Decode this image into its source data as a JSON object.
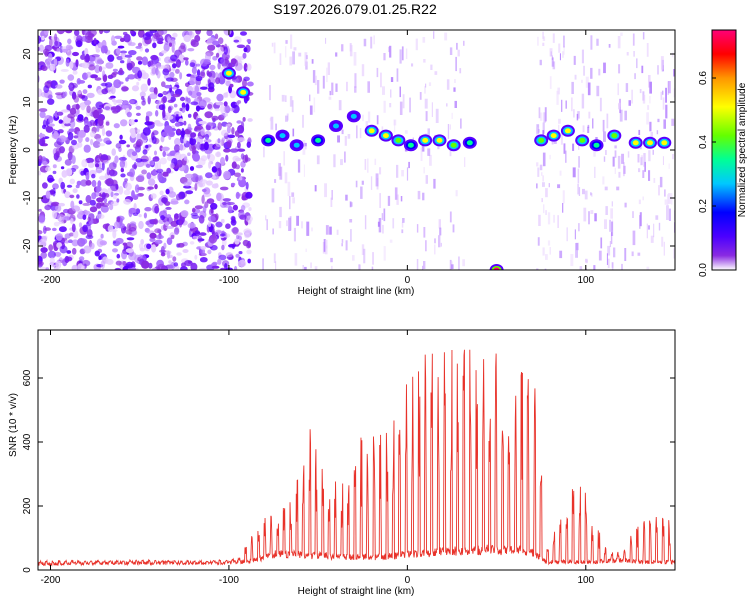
{
  "title": "S197.2026.079.01.25.R22",
  "chart_data": [
    {
      "type": "heatmap",
      "name": "spectrogram",
      "xlabel": "Height of straight line (km)",
      "ylabel": "Frequency (Hz)",
      "xlim": [
        -207,
        150
      ],
      "ylim": [
        -25,
        25
      ],
      "xticks": [
        -200,
        -100,
        0,
        100
      ],
      "xtick_labels": [
        "-200",
        "-100",
        "0",
        "100"
      ],
      "yticks": [
        -20,
        -10,
        0,
        10,
        20
      ],
      "ytick_labels": [
        "-20",
        "-10",
        "0",
        "10",
        "20"
      ],
      "colorbar": {
        "label": "Normalized spectral amplitude",
        "range": [
          0,
          0.75
        ],
        "ticks": [
          0,
          0.2,
          0.4,
          0.6
        ],
        "tick_labels": [
          "0.0",
          "0.2",
          "0.4",
          "0.6"
        ],
        "colors": [
          "#ffffff",
          "#8a2be2",
          "#4b00ff",
          "#0000ff",
          "#00c8ff",
          "#00ff96",
          "#64ff00",
          "#ffff00",
          "#ff9600",
          "#ff0000",
          "#ff0078"
        ]
      },
      "noise_region_km": [
        -207,
        -88
      ],
      "gap_regions_km": [
        [
          -82,
          32
        ],
        [
          72,
          150
        ]
      ],
      "blank_region_km": [
        32,
        72
      ],
      "tone_frequency_hz": 1.5,
      "tone_points": [
        {
          "x": -100,
          "y": 16,
          "a": 0.5
        },
        {
          "x": -92,
          "y": 12,
          "a": 0.55
        },
        {
          "x": -78,
          "y": 2,
          "a": 0.35
        },
        {
          "x": -70,
          "y": 3,
          "a": 0.3
        },
        {
          "x": -62,
          "y": 1,
          "a": 0.3
        },
        {
          "x": -50,
          "y": 2,
          "a": 0.35
        },
        {
          "x": -40,
          "y": 5,
          "a": 0.3
        },
        {
          "x": -30,
          "y": 7,
          "a": 0.3
        },
        {
          "x": -20,
          "y": 4,
          "a": 0.55
        },
        {
          "x": -12,
          "y": 3,
          "a": 0.5
        },
        {
          "x": -5,
          "y": 2,
          "a": 0.45
        },
        {
          "x": 2,
          "y": 1,
          "a": 0.4
        },
        {
          "x": 10,
          "y": 2,
          "a": 0.5
        },
        {
          "x": 18,
          "y": 2,
          "a": 0.5
        },
        {
          "x": 26,
          "y": 1,
          "a": 0.45
        },
        {
          "x": 35,
          "y": 1.5,
          "a": 0.4
        },
        {
          "x": 50,
          "y": -25,
          "a": 0.75
        },
        {
          "x": 75,
          "y": 2,
          "a": 0.45
        },
        {
          "x": 82,
          "y": 3,
          "a": 0.5
        },
        {
          "x": 90,
          "y": 4,
          "a": 0.5
        },
        {
          "x": 98,
          "y": 2,
          "a": 0.45
        },
        {
          "x": 106,
          "y": 1,
          "a": 0.4
        },
        {
          "x": 116,
          "y": 3,
          "a": 0.45
        },
        {
          "x": 128,
          "y": 1.5,
          "a": 0.5
        },
        {
          "x": 136,
          "y": 1.5,
          "a": 0.5
        },
        {
          "x": 144,
          "y": 1.5,
          "a": 0.5
        }
      ]
    },
    {
      "type": "line",
      "name": "snr",
      "xlabel": "Height of straight line (km)",
      "ylabel": "SNR (10 * v/v)",
      "xlim": [
        -207,
        150
      ],
      "ylim": [
        0,
        750
      ],
      "xticks": [
        -200,
        -100,
        0,
        100
      ],
      "xtick_labels": [
        "-200",
        "-100",
        "0",
        "100"
      ],
      "yticks": [
        0,
        200,
        400,
        600
      ],
      "ytick_labels": [
        "0",
        "200",
        "400",
        "600"
      ],
      "color": "#e8322a",
      "series": [
        {
          "name": "SNR",
          "x": [
            -207,
            -190,
            -170,
            -150,
            -130,
            -110,
            -95,
            -85,
            -80,
            -75,
            -65,
            -55,
            -45,
            -35,
            -25,
            -15,
            -5,
            5,
            15,
            25,
            35,
            45,
            55,
            65,
            72,
            78,
            88,
            96,
            104,
            112,
            120,
            130,
            140,
            150
          ],
          "base": [
            18,
            20,
            22,
            22,
            22,
            22,
            24,
            30,
            40,
            50,
            50,
            45,
            45,
            40,
            42,
            40,
            45,
            50,
            55,
            60,
            58,
            65,
            60,
            62,
            50,
            25,
            25,
            25,
            25,
            28,
            30,
            25,
            25,
            25
          ],
          "peak": [
            30,
            32,
            30,
            32,
            30,
            30,
            35,
            140,
            190,
            180,
            220,
            460,
            300,
            280,
            440,
            430,
            620,
            660,
            720,
            700,
            690,
            710,
            680,
            660,
            580,
            60,
            200,
            300,
            200,
            60,
            60,
            150,
            170,
            160
          ]
        }
      ]
    }
  ]
}
